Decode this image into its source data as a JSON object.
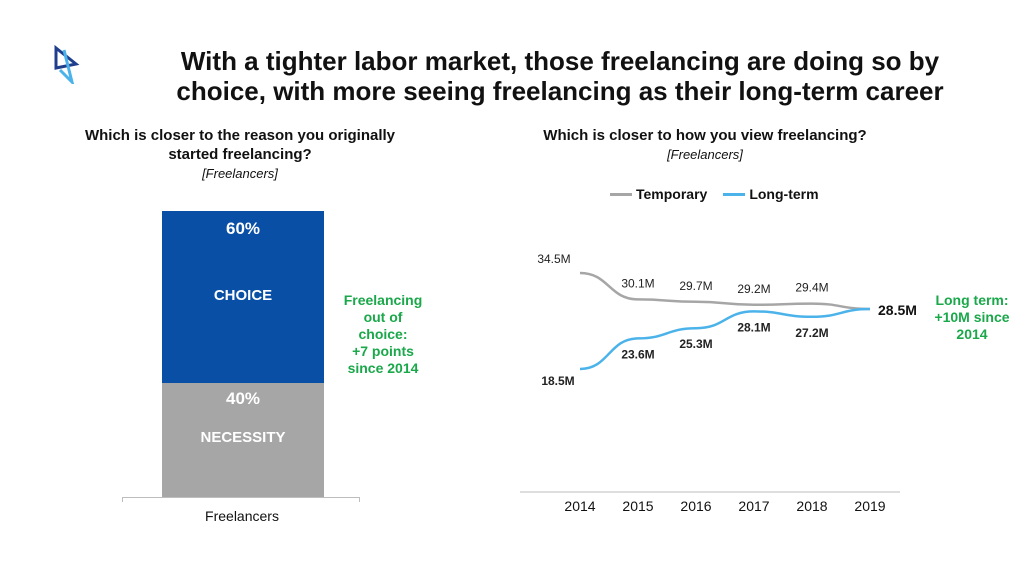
{
  "title_line1": "With a tighter labor market, those freelancing are doing so by",
  "title_line2": "choice, with more seeing freelancing as their long-term career",
  "colors": {
    "choice": "#0a4fa6",
    "necessity": "#a6a6a6",
    "temporary": "#a6a6a6",
    "long_term": "#4bb3ea",
    "highlight": "#1aa84a"
  },
  "left": {
    "question_line1": "Which is closer to the reason you originally",
    "question_line2": "started freelancing?",
    "base": "[Freelancers]",
    "callout": [
      "Freelancing",
      "out of",
      "choice:",
      "+7 points",
      "since 2014"
    ]
  },
  "right": {
    "question": "Which is closer to how you view freelancing?",
    "base": "[Freelancers]",
    "callout": [
      "Long term:",
      "+10M since",
      "2014"
    ],
    "end_label": "28.5M"
  },
  "chart_data": [
    {
      "type": "bar",
      "stacked": true,
      "categories": [
        "Freelancers"
      ],
      "series": [
        {
          "name": "CHOICE",
          "values": [
            60
          ],
          "label": "60%"
        },
        {
          "name": "NECESSITY",
          "values": [
            40
          ],
          "label": "40%"
        }
      ],
      "ylim": [
        0,
        100
      ]
    },
    {
      "type": "line",
      "x": [
        "2014",
        "2015",
        "2016",
        "2017",
        "2018",
        "2019"
      ],
      "series": [
        {
          "name": "Temporary",
          "values": [
            34.5,
            30.1,
            29.7,
            29.2,
            29.4,
            28.5
          ],
          "labels": [
            "34.5M",
            "30.1M",
            "29.7M",
            "29.2M",
            "29.4M",
            "28.5M"
          ]
        },
        {
          "name": "Long-term",
          "values": [
            18.5,
            23.6,
            25.3,
            28.1,
            27.2,
            28.5
          ],
          "labels": [
            "18.5M",
            "23.6M",
            "25.3M",
            "28.1M",
            "27.2M",
            "28.5M"
          ]
        }
      ],
      "ylim": [
        10,
        40
      ],
      "legend": "top"
    }
  ]
}
